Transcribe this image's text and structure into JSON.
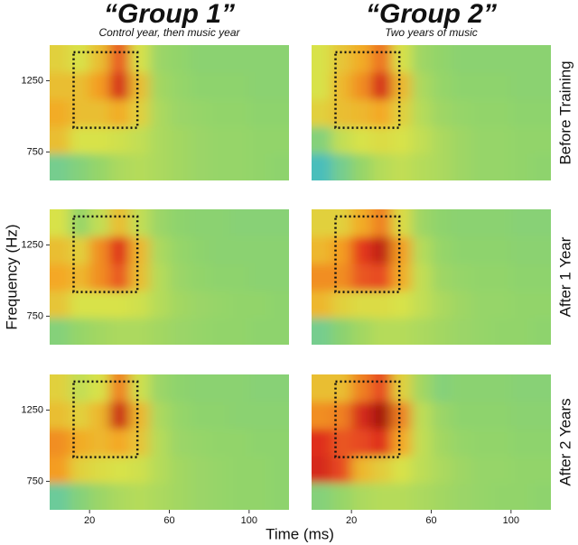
{
  "chart_data": {
    "type": "heatmap",
    "xlabel": "Time (ms)",
    "ylabel": "Frequency (Hz)",
    "columns": [
      {
        "title": "“Group 1”",
        "subtitle": "Control year, then music year"
      },
      {
        "title": "“Group 2”",
        "subtitle": "Two years of music"
      }
    ],
    "rows": [
      "Before Training",
      "After 1 Year",
      "After 2 Years"
    ],
    "xlim": [
      0,
      120
    ],
    "ylim": [
      550,
      1500
    ],
    "xticks": [
      20,
      60,
      100
    ],
    "yticks": [
      750,
      1250
    ],
    "xbins": [
      0,
      10,
      20,
      30,
      40,
      50,
      60,
      70,
      80,
      90,
      100,
      110,
      120
    ],
    "ybins": [
      550,
      740,
      930,
      1120,
      1310,
      1500
    ],
    "zlim": [
      0,
      1
    ],
    "colormap": [
      "#1aa6d8",
      "#5cc7b0",
      "#8fd36c",
      "#d8e24a",
      "#f5a623",
      "#e3301f",
      "#8a0909"
    ],
    "roi": {
      "x": [
        12,
        44
      ],
      "y": [
        920,
        1450
      ]
    },
    "z": [
      [
        [
          [
            0.25,
            0.3,
            0.35,
            0.4,
            0.42,
            0.4,
            0.38,
            0.36,
            0.35,
            0.35,
            0.34,
            0.33
          ],
          [
            0.6,
            0.5,
            0.5,
            0.48,
            0.45,
            0.4,
            0.38,
            0.36,
            0.35,
            0.35,
            0.34,
            0.34
          ],
          [
            0.65,
            0.6,
            0.6,
            0.65,
            0.55,
            0.4,
            0.36,
            0.35,
            0.34,
            0.34,
            0.33,
            0.33
          ],
          [
            0.6,
            0.6,
            0.68,
            0.86,
            0.6,
            0.38,
            0.35,
            0.33,
            0.33,
            0.33,
            0.32,
            0.32
          ],
          [
            0.55,
            0.5,
            0.6,
            0.78,
            0.5,
            0.36,
            0.34,
            0.32,
            0.32,
            0.32,
            0.32,
            0.32
          ]
        ],
        [
          [
            0.12,
            0.25,
            0.35,
            0.42,
            0.45,
            0.42,
            0.4,
            0.37,
            0.35,
            0.35,
            0.34,
            0.33
          ],
          [
            0.3,
            0.45,
            0.5,
            0.52,
            0.5,
            0.45,
            0.4,
            0.37,
            0.35,
            0.35,
            0.34,
            0.34
          ],
          [
            0.55,
            0.6,
            0.62,
            0.66,
            0.55,
            0.42,
            0.37,
            0.35,
            0.34,
            0.34,
            0.33,
            0.33
          ],
          [
            0.5,
            0.62,
            0.7,
            0.86,
            0.62,
            0.4,
            0.35,
            0.33,
            0.33,
            0.33,
            0.32,
            0.32
          ],
          [
            0.5,
            0.58,
            0.65,
            0.74,
            0.5,
            0.37,
            0.34,
            0.32,
            0.32,
            0.32,
            0.32,
            0.32
          ]
        ]
      ],
      [
        [
          [
            0.3,
            0.35,
            0.38,
            0.4,
            0.4,
            0.38,
            0.36,
            0.35,
            0.34,
            0.34,
            0.33,
            0.33
          ],
          [
            0.58,
            0.5,
            0.5,
            0.5,
            0.48,
            0.42,
            0.38,
            0.36,
            0.35,
            0.34,
            0.34,
            0.33
          ],
          [
            0.66,
            0.62,
            0.7,
            0.78,
            0.6,
            0.42,
            0.36,
            0.34,
            0.33,
            0.33,
            0.32,
            0.32
          ],
          [
            0.6,
            0.55,
            0.7,
            0.84,
            0.62,
            0.4,
            0.35,
            0.33,
            0.32,
            0.32,
            0.32,
            0.32
          ],
          [
            0.5,
            0.35,
            0.45,
            0.6,
            0.45,
            0.36,
            0.33,
            0.32,
            0.32,
            0.31,
            0.31,
            0.31
          ]
        ],
        [
          [
            0.25,
            0.32,
            0.38,
            0.42,
            0.42,
            0.4,
            0.38,
            0.36,
            0.35,
            0.34,
            0.34,
            0.33
          ],
          [
            0.62,
            0.55,
            0.52,
            0.52,
            0.5,
            0.45,
            0.4,
            0.37,
            0.35,
            0.35,
            0.34,
            0.34
          ],
          [
            0.7,
            0.7,
            0.78,
            0.8,
            0.65,
            0.45,
            0.37,
            0.35,
            0.34,
            0.34,
            0.33,
            0.33
          ],
          [
            0.62,
            0.68,
            0.82,
            0.9,
            0.68,
            0.42,
            0.35,
            0.33,
            0.33,
            0.33,
            0.32,
            0.32
          ],
          [
            0.55,
            0.55,
            0.65,
            0.72,
            0.52,
            0.37,
            0.33,
            0.32,
            0.32,
            0.32,
            0.31,
            0.31
          ]
        ]
      ],
      [
        [
          [
            0.22,
            0.3,
            0.36,
            0.4,
            0.42,
            0.4,
            0.38,
            0.36,
            0.35,
            0.34,
            0.34,
            0.33
          ],
          [
            0.68,
            0.55,
            0.52,
            0.5,
            0.48,
            0.42,
            0.38,
            0.36,
            0.35,
            0.34,
            0.34,
            0.33
          ],
          [
            0.7,
            0.65,
            0.62,
            0.66,
            0.58,
            0.42,
            0.36,
            0.35,
            0.34,
            0.34,
            0.33,
            0.33
          ],
          [
            0.6,
            0.55,
            0.62,
            0.88,
            0.62,
            0.4,
            0.35,
            0.33,
            0.33,
            0.32,
            0.32,
            0.32
          ],
          [
            0.55,
            0.45,
            0.5,
            0.72,
            0.48,
            0.36,
            0.33,
            0.32,
            0.32,
            0.32,
            0.31,
            0.31
          ]
        ],
        [
          [
            0.3,
            0.35,
            0.4,
            0.42,
            0.42,
            0.4,
            0.38,
            0.36,
            0.35,
            0.34,
            0.34,
            0.33
          ],
          [
            0.86,
            0.8,
            0.62,
            0.56,
            0.5,
            0.44,
            0.4,
            0.37,
            0.35,
            0.35,
            0.34,
            0.34
          ],
          [
            0.84,
            0.78,
            0.8,
            0.84,
            0.66,
            0.45,
            0.38,
            0.35,
            0.34,
            0.34,
            0.33,
            0.33
          ],
          [
            0.7,
            0.72,
            0.86,
            0.95,
            0.72,
            0.44,
            0.36,
            0.33,
            0.33,
            0.33,
            0.32,
            0.32
          ],
          [
            0.6,
            0.6,
            0.72,
            0.8,
            0.55,
            0.38,
            0.3,
            0.32,
            0.32,
            0.32,
            0.31,
            0.31
          ]
        ]
      ]
    ]
  }
}
